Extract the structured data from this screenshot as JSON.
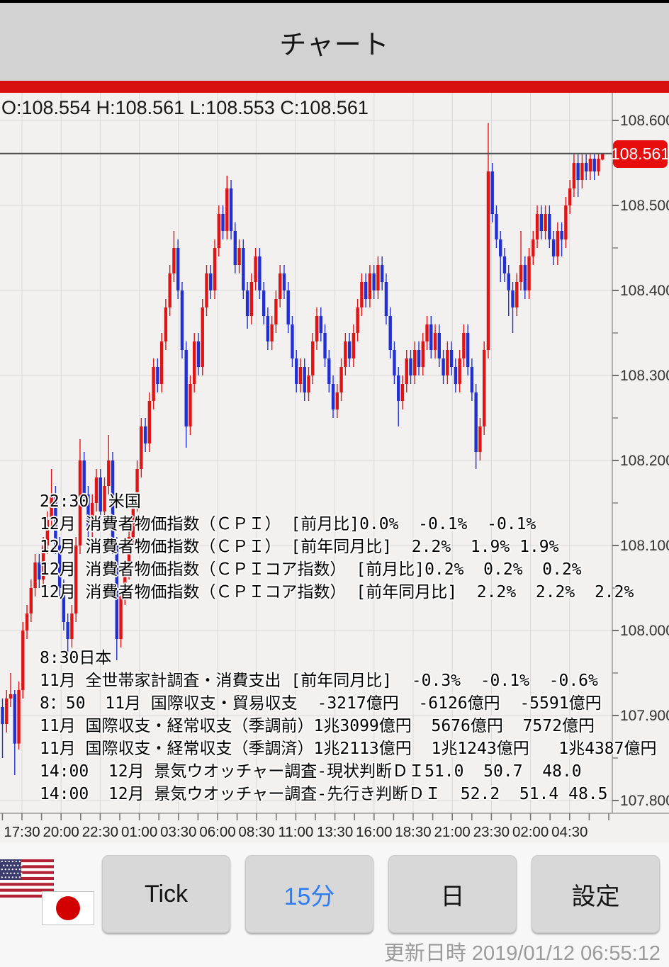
{
  "app": {
    "title": "チャート"
  },
  "chart_data": {
    "type": "candlestick",
    "instrument": "USD/JPY (flags)",
    "timeframe_selected": "15分",
    "ohlc_line": "O:108.554 H:108.561 L:108.553 C:108.561",
    "current_price": 108.561,
    "current_price_label": "108.561",
    "up_color": "#e01414",
    "down_color": "#2230d2",
    "grid": true,
    "ylim": [
      107.785,
      108.635
    ],
    "y_major_step": 0.1,
    "y_minor_step": 0.05,
    "y_tick_labels": [
      "108.600",
      "108.500",
      "108.400",
      "108.300",
      "108.200",
      "108.100",
      "108.000",
      "107.900",
      "107.800"
    ],
    "y_tick_values": [
      108.6,
      108.5,
      108.4,
      108.3,
      108.2,
      108.1,
      108.0,
      107.9,
      107.8
    ],
    "x_labels": [
      "17:30",
      "20:00",
      "22:30",
      "01:00",
      "03:30",
      "06:00",
      "08:30",
      "11:00",
      "13:30",
      "16:00",
      "18:30",
      "21:00",
      "23:30",
      "02:00",
      "04:30"
    ],
    "candles": [
      [
        107.91,
        107.92,
        107.85,
        107.89
      ],
      [
        107.89,
        107.93,
        107.88,
        107.92
      ],
      [
        107.92,
        107.95,
        107.91,
        107.925
      ],
      [
        107.925,
        107.93,
        107.83,
        107.867
      ],
      [
        107.867,
        107.94,
        107.86,
        107.93
      ],
      [
        107.93,
        108.01,
        107.92,
        108.0
      ],
      [
        108.0,
        108.03,
        107.99,
        108.02
      ],
      [
        108.02,
        108.06,
        108.01,
        108.05
      ],
      [
        108.05,
        108.09,
        108.04,
        108.08
      ],
      [
        108.08,
        108.09,
        108.05,
        108.06
      ],
      [
        108.06,
        108.11,
        108.05,
        108.1
      ],
      [
        108.1,
        108.14,
        108.09,
        108.13
      ],
      [
        108.13,
        108.19,
        108.12,
        108.16
      ],
      [
        108.16,
        108.17,
        108.09,
        108.1
      ],
      [
        108.1,
        108.11,
        108.04,
        108.05
      ],
      [
        108.05,
        108.06,
        108.0,
        108.01
      ],
      [
        108.01,
        108.02,
        107.97,
        107.99
      ],
      [
        107.99,
        108.03,
        107.98,
        108.02
      ],
      [
        108.02,
        108.11,
        108.01,
        108.1
      ],
      [
        108.1,
        108.225,
        108.09,
        108.2
      ],
      [
        108.2,
        108.21,
        108.15,
        108.16
      ],
      [
        108.16,
        108.17,
        108.11,
        108.12
      ],
      [
        108.12,
        108.16,
        108.11,
        108.15
      ],
      [
        108.15,
        108.19,
        108.14,
        108.18
      ],
      [
        108.18,
        108.19,
        108.13,
        108.14
      ],
      [
        108.14,
        108.18,
        108.13,
        108.17
      ],
      [
        108.17,
        108.23,
        108.16,
        108.2
      ],
      [
        108.2,
        108.21,
        108.09,
        108.1
      ],
      [
        108.1,
        108.11,
        107.965,
        107.99
      ],
      [
        107.99,
        108.05,
        107.98,
        108.04
      ],
      [
        108.04,
        108.08,
        108.03,
        108.07
      ],
      [
        108.07,
        108.12,
        108.06,
        108.11
      ],
      [
        108.11,
        108.16,
        108.1,
        108.15
      ],
      [
        108.15,
        108.2,
        108.14,
        108.19
      ],
      [
        108.19,
        108.25,
        108.18,
        108.24
      ],
      [
        108.24,
        108.25,
        108.21,
        108.22
      ],
      [
        108.22,
        108.28,
        108.21,
        108.27
      ],
      [
        108.27,
        108.32,
        108.26,
        108.31
      ],
      [
        108.31,
        108.32,
        108.28,
        108.29
      ],
      [
        108.29,
        108.35,
        108.28,
        108.34
      ],
      [
        108.34,
        108.39,
        108.33,
        108.38
      ],
      [
        108.38,
        108.43,
        108.37,
        108.42
      ],
      [
        108.42,
        108.47,
        108.41,
        108.45
      ],
      [
        108.45,
        108.46,
        108.39,
        108.4
      ],
      [
        108.4,
        108.41,
        108.32,
        108.33
      ],
      [
        108.33,
        108.34,
        108.215,
        108.24
      ],
      [
        108.24,
        108.3,
        108.23,
        108.29
      ],
      [
        108.29,
        108.35,
        108.28,
        108.34
      ],
      [
        108.34,
        108.35,
        108.3,
        108.31
      ],
      [
        108.31,
        108.39,
        108.3,
        108.38
      ],
      [
        108.38,
        108.43,
        108.37,
        108.42
      ],
      [
        108.42,
        108.43,
        108.39,
        108.4
      ],
      [
        108.4,
        108.46,
        108.39,
        108.45
      ],
      [
        108.45,
        108.5,
        108.44,
        108.49
      ],
      [
        108.49,
        108.5,
        108.46,
        108.47
      ],
      [
        108.47,
        108.535,
        108.46,
        108.52
      ],
      [
        108.52,
        108.53,
        108.46,
        108.47
      ],
      [
        108.47,
        108.48,
        108.42,
        108.43
      ],
      [
        108.43,
        108.46,
        108.42,
        108.45
      ],
      [
        108.45,
        108.46,
        108.39,
        108.4
      ],
      [
        108.4,
        108.41,
        108.355,
        108.37
      ],
      [
        108.37,
        108.42,
        108.36,
        108.41
      ],
      [
        108.41,
        108.45,
        108.4,
        108.44
      ],
      [
        108.44,
        108.45,
        108.39,
        108.4
      ],
      [
        108.4,
        108.41,
        108.36,
        108.37
      ],
      [
        108.37,
        108.38,
        108.33,
        108.34
      ],
      [
        108.34,
        108.37,
        108.33,
        108.36
      ],
      [
        108.36,
        108.4,
        108.35,
        108.39
      ],
      [
        108.39,
        108.43,
        108.38,
        108.42
      ],
      [
        108.42,
        108.43,
        108.39,
        108.4
      ],
      [
        108.4,
        108.41,
        108.35,
        108.36
      ],
      [
        108.36,
        108.37,
        108.31,
        108.32
      ],
      [
        108.32,
        108.33,
        108.28,
        108.29
      ],
      [
        108.29,
        108.32,
        108.28,
        108.31
      ],
      [
        108.31,
        108.32,
        108.27,
        108.28
      ],
      [
        108.28,
        108.31,
        108.27,
        108.3
      ],
      [
        108.3,
        108.35,
        108.29,
        108.34
      ],
      [
        108.34,
        108.38,
        108.33,
        108.37
      ],
      [
        108.37,
        108.38,
        108.34,
        108.35
      ],
      [
        108.35,
        108.36,
        108.31,
        108.32
      ],
      [
        108.32,
        108.33,
        108.28,
        108.29
      ],
      [
        108.29,
        108.3,
        108.25,
        108.26
      ],
      [
        108.26,
        108.29,
        108.25,
        108.28
      ],
      [
        108.28,
        108.32,
        108.27,
        108.31
      ],
      [
        108.31,
        108.35,
        108.3,
        108.34
      ],
      [
        108.34,
        108.35,
        108.31,
        108.32
      ],
      [
        108.32,
        108.36,
        108.31,
        108.35
      ],
      [
        108.35,
        108.39,
        108.34,
        108.38
      ],
      [
        108.38,
        108.42,
        108.37,
        108.41
      ],
      [
        108.41,
        108.42,
        108.38,
        108.39
      ],
      [
        108.39,
        108.43,
        108.38,
        108.42
      ],
      [
        108.42,
        108.43,
        108.39,
        108.4
      ],
      [
        108.4,
        108.44,
        108.39,
        108.43
      ],
      [
        108.43,
        108.44,
        108.4,
        108.41
      ],
      [
        108.41,
        108.42,
        108.36,
        108.37
      ],
      [
        108.37,
        108.38,
        108.32,
        108.33
      ],
      [
        108.33,
        108.34,
        108.29,
        108.3
      ],
      [
        108.3,
        108.31,
        108.24,
        108.27
      ],
      [
        108.27,
        108.3,
        108.26,
        108.29
      ],
      [
        108.29,
        108.33,
        108.28,
        108.32
      ],
      [
        108.32,
        108.33,
        108.29,
        108.3
      ],
      [
        108.3,
        108.34,
        108.29,
        108.33
      ],
      [
        108.33,
        108.34,
        108.3,
        108.31
      ],
      [
        108.31,
        108.35,
        108.3,
        108.34
      ],
      [
        108.34,
        108.37,
        108.33,
        108.36
      ],
      [
        108.36,
        108.37,
        108.32,
        108.33
      ],
      [
        108.33,
        108.36,
        108.32,
        108.35
      ],
      [
        108.35,
        108.36,
        108.31,
        108.32
      ],
      [
        108.32,
        108.33,
        108.29,
        108.3
      ],
      [
        108.3,
        108.34,
        108.29,
        108.33
      ],
      [
        108.33,
        108.34,
        108.3,
        108.31
      ],
      [
        108.31,
        108.32,
        108.28,
        108.29
      ],
      [
        108.29,
        108.33,
        108.28,
        108.32
      ],
      [
        108.32,
        108.36,
        108.31,
        108.35
      ],
      [
        108.35,
        108.36,
        108.3,
        108.31
      ],
      [
        108.31,
        108.32,
        108.27,
        108.28
      ],
      [
        108.28,
        108.29,
        108.19,
        108.21
      ],
      [
        108.21,
        108.25,
        108.2,
        108.24
      ],
      [
        108.24,
        108.34,
        108.23,
        108.33
      ],
      [
        108.33,
        108.597,
        108.32,
        108.54
      ],
      [
        108.54,
        108.55,
        108.48,
        108.49
      ],
      [
        108.49,
        108.5,
        108.45,
        108.46
      ],
      [
        108.46,
        108.47,
        108.41,
        108.44
      ],
      [
        108.44,
        108.45,
        108.41,
        108.42
      ],
      [
        108.42,
        108.43,
        108.37,
        108.4
      ],
      [
        108.4,
        108.41,
        108.35,
        108.38
      ],
      [
        108.38,
        108.42,
        108.37,
        108.41
      ],
      [
        108.41,
        108.47,
        108.4,
        108.43
      ],
      [
        108.43,
        108.44,
        108.39,
        108.4
      ],
      [
        108.4,
        108.45,
        108.39,
        108.44
      ],
      [
        108.44,
        108.47,
        108.43,
        108.46
      ],
      [
        108.46,
        108.5,
        108.45,
        108.49
      ],
      [
        108.49,
        108.5,
        108.46,
        108.47
      ],
      [
        108.47,
        108.5,
        108.46,
        108.49
      ],
      [
        108.49,
        108.5,
        108.45,
        108.46
      ],
      [
        108.46,
        108.47,
        108.43,
        108.44
      ],
      [
        108.44,
        108.48,
        108.43,
        108.47
      ],
      [
        108.47,
        108.48,
        108.44,
        108.46
      ],
      [
        108.46,
        108.51,
        108.45,
        108.5
      ],
      [
        108.5,
        108.53,
        108.49,
        108.52
      ],
      [
        108.52,
        108.56,
        108.51,
        108.55
      ],
      [
        108.55,
        108.56,
        108.51,
        108.53
      ],
      [
        108.53,
        108.56,
        108.52,
        108.55
      ],
      [
        108.55,
        108.56,
        108.53,
        108.54
      ],
      [
        108.54,
        108.56,
        108.53,
        108.555
      ],
      [
        108.555,
        108.56,
        108.53,
        108.54
      ],
      [
        108.54,
        108.56,
        108.535,
        108.555
      ],
      [
        108.554,
        108.561,
        108.553,
        108.561
      ]
    ],
    "news_annotations": [
      {
        "lines": [
          "22:30  米国",
          "12月 消費者物価指数（ＣＰＩ） [前月比]0.0%  -0.1%  -0.1%",
          "12月 消費者物価指数（ＣＰＩ） [前年同月比]  2.2%  1.9% 1.9%",
          "12月 消費者物価指数（ＣＰＩコア指数） [前月比]0.2%  0.2%  0.2%",
          "12月 消費者物価指数（ＣＰＩコア指数） [前年同月比]  2.2%  2.2%  2.2%"
        ]
      },
      {
        "lines": [
          "8:30日本",
          "11月 全世帯家計調査・消費支出 [前年同月比]  -0.3%  -0.1%  -0.6%",
          "8：50  11月 国際収支・貿易収支  -3217億円  -6126億円  -5591億円",
          "11月 国際収支・経常収支（季調前）1兆3099億円  5676億円  7572億円",
          "11月 国際収支・経常収支（季調済）1兆2113億円  1兆1243億円   1兆4387億円",
          "14:00  12月 景気ウオッチャー調査-現状判断ＤＩ51.0  50.7  48.0",
          "14:00  12月 景気ウオッチャー調査-先行き判断ＤＩ  52.2  51.4 48.5"
        ]
      }
    ]
  },
  "toolbar": {
    "buttons": [
      {
        "label": "Tick",
        "selected": false
      },
      {
        "label": "15分",
        "selected": true
      },
      {
        "label": "日",
        "selected": false
      },
      {
        "label": "設定",
        "selected": false
      }
    ]
  },
  "footer": {
    "updated_label": "更新日時",
    "updated_at": "2019/01/12 06:55:12"
  }
}
